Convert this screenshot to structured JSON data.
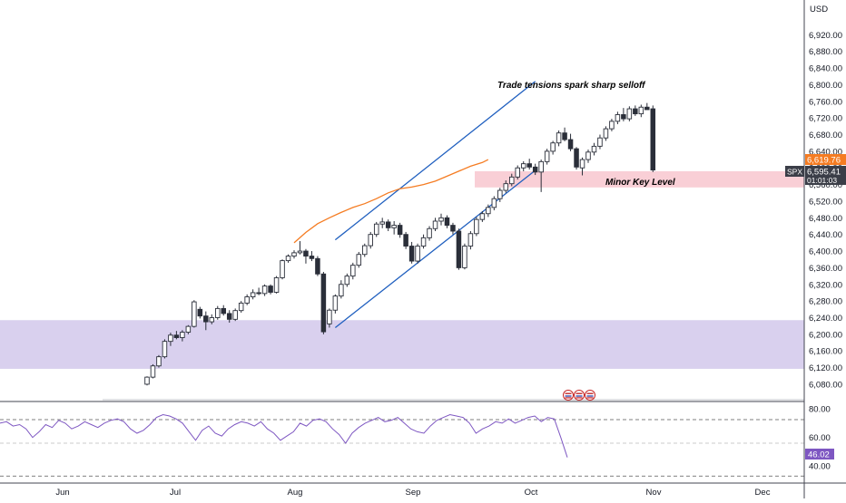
{
  "chart_data": [
    {
      "type": "candlestick",
      "symbol": "SPX",
      "currency": "USD",
      "x_ticks": [
        "Jun",
        "Jul",
        "Aug",
        "Sep",
        "Oct",
        "Nov",
        "Dec"
      ],
      "y_ticks": [
        "6,920.00",
        "6,880.00",
        "6,840.00",
        "6,800.00",
        "6,760.00",
        "6,720.00",
        "6,680.00",
        "6,640.00",
        "6,600.00",
        "6,560.00",
        "6,520.00",
        "6,480.00",
        "6,440.00",
        "6,400.00",
        "6,360.00",
        "6,320.00",
        "6,280.00",
        "6,240.00",
        "6,200.00",
        "6,160.00",
        "6,120.00",
        "6,080.00"
      ],
      "ylim": [
        6045,
        6960
      ],
      "last_price": "6,595.41",
      "countdown": "01:01:03",
      "ma_label_value": "6,619.76",
      "ma_value": 6619.76,
      "annotations": [
        "Trade tensions spark sharp selloff",
        "Minor Key Level"
      ],
      "zones": [
        {
          "name": "Minor Key Level",
          "y_from": 6553,
          "y_to": 6592,
          "color": "#f9cfd6"
        },
        {
          "name": "demand-zone",
          "y_from": 6117,
          "y_to": 6234,
          "color": "#d9d0ee"
        }
      ],
      "channel": {
        "upper": [
          [
            32,
            6427
          ],
          [
            66,
            6808
          ]
        ],
        "lower": [
          [
            32,
            6216
          ],
          [
            66,
            6594
          ]
        ]
      },
      "start_day": 0,
      "candles": [
        [
          6080,
          6099,
          6077,
          6097
        ],
        [
          6097,
          6128,
          6094,
          6124
        ],
        [
          6124,
          6150,
          6120,
          6146
        ],
        [
          6146,
          6188,
          6142,
          6183
        ],
        [
          6183,
          6204,
          6172,
          6198
        ],
        [
          6198,
          6208,
          6188,
          6192
        ],
        [
          6192,
          6210,
          6183,
          6205
        ],
        [
          6205,
          6222,
          6200,
          6219
        ],
        [
          6219,
          6282,
          6216,
          6278
        ],
        [
          6260,
          6266,
          6238,
          6244
        ],
        [
          6244,
          6255,
          6210,
          6230
        ],
        [
          6230,
          6248,
          6224,
          6240
        ],
        [
          6240,
          6268,
          6235,
          6262
        ],
        [
          6262,
          6270,
          6245,
          6250
        ],
        [
          6250,
          6258,
          6228,
          6236
        ],
        [
          6236,
          6262,
          6232,
          6257
        ],
        [
          6257,
          6280,
          6252,
          6275
        ],
        [
          6275,
          6296,
          6270,
          6290
        ],
        [
          6290,
          6308,
          6284,
          6300
        ],
        [
          6300,
          6312,
          6294,
          6298
        ],
        [
          6298,
          6320,
          6292,
          6316
        ],
        [
          6316,
          6320,
          6296,
          6301
        ],
        [
          6301,
          6340,
          6298,
          6336
        ],
        [
          6336,
          6380,
          6332,
          6377
        ],
        [
          6377,
          6392,
          6372,
          6388
        ],
        [
          6388,
          6402,
          6382,
          6396
        ],
        [
          6396,
          6424,
          6392,
          6400
        ],
        [
          6400,
          6405,
          6370,
          6388
        ],
        [
          6388,
          6400,
          6376,
          6382
        ],
        [
          6382,
          6388,
          6340,
          6345
        ],
        [
          6345,
          6350,
          6200,
          6206
        ],
        [
          6225,
          6262,
          6216,
          6258
        ],
        [
          6258,
          6296,
          6250,
          6292
        ],
        [
          6292,
          6330,
          6286,
          6320
        ],
        [
          6320,
          6346,
          6314,
          6340
        ],
        [
          6340,
          6372,
          6332,
          6366
        ],
        [
          6366,
          6398,
          6360,
          6392
        ],
        [
          6392,
          6418,
          6386,
          6413
        ],
        [
          6413,
          6446,
          6406,
          6440
        ],
        [
          6440,
          6470,
          6434,
          6465
        ],
        [
          6465,
          6480,
          6455,
          6470
        ],
        [
          6470,
          6476,
          6448,
          6456
        ],
        [
          6456,
          6472,
          6440,
          6462
        ],
        [
          6462,
          6468,
          6432,
          6440
        ],
        [
          6440,
          6446,
          6405,
          6412
        ],
        [
          6412,
          6422,
          6370,
          6376
        ],
        [
          6376,
          6418,
          6370,
          6412
        ],
        [
          6412,
          6440,
          6406,
          6432
        ],
        [
          6432,
          6460,
          6425,
          6454
        ],
        [
          6454,
          6480,
          6448,
          6472
        ],
        [
          6472,
          6490,
          6462,
          6480
        ],
        [
          6480,
          6486,
          6455,
          6462
        ],
        [
          6462,
          6468,
          6440,
          6448
        ],
        [
          6448,
          6454,
          6355,
          6360
        ],
        [
          6360,
          6418,
          6356,
          6412
        ],
        [
          6412,
          6448,
          6404,
          6442
        ],
        [
          6442,
          6482,
          6436,
          6476
        ],
        [
          6476,
          6496,
          6470,
          6490
        ],
        [
          6490,
          6512,
          6482,
          6505
        ],
        [
          6505,
          6532,
          6498,
          6526
        ],
        [
          6526,
          6552,
          6518,
          6546
        ],
        [
          6546,
          6570,
          6540,
          6562
        ],
        [
          6562,
          6586,
          6556,
          6578
        ],
        [
          6578,
          6606,
          6572,
          6600
        ],
        [
          6600,
          6616,
          6592,
          6610
        ],
        [
          6610,
          6622,
          6596,
          6602
        ],
        [
          6602,
          6610,
          6583,
          6590
        ],
        [
          6590,
          6620,
          6542,
          6615
        ],
        [
          6615,
          6646,
          6608,
          6640
        ],
        [
          6640,
          6665,
          6632,
          6660
        ],
        [
          6660,
          6690,
          6652,
          6684
        ],
        [
          6684,
          6697,
          6664,
          6668
        ],
        [
          6668,
          6682,
          6640,
          6646
        ],
        [
          6646,
          6650,
          6596,
          6602
        ],
        [
          6600,
          6625,
          6582,
          6620
        ],
        [
          6620,
          6644,
          6612,
          6638
        ],
        [
          6638,
          6660,
          6630,
          6652
        ],
        [
          6652,
          6680,
          6645,
          6672
        ],
        [
          6672,
          6700,
          6665,
          6694
        ],
        [
          6694,
          6718,
          6688,
          6712
        ],
        [
          6712,
          6735,
          6705,
          6728
        ],
        [
          6728,
          6744,
          6712,
          6718
        ],
        [
          6718,
          6748,
          6712,
          6742
        ],
        [
          6742,
          6750,
          6725,
          6730
        ],
        [
          6730,
          6752,
          6722,
          6746
        ],
        [
          6746,
          6756,
          6740,
          6740
        ],
        [
          6742,
          6750,
          6590,
          6595
        ]
      ],
      "ma_line": [
        [
          25,
          6420
        ],
        [
          27,
          6445
        ],
        [
          29,
          6466
        ],
        [
          31,
          6480
        ],
        [
          33,
          6493
        ],
        [
          35,
          6505
        ],
        [
          37,
          6514
        ],
        [
          39,
          6526
        ],
        [
          41,
          6540
        ],
        [
          43,
          6550
        ],
        [
          45,
          6554
        ],
        [
          47,
          6560
        ],
        [
          49,
          6568
        ],
        [
          51,
          6580
        ],
        [
          53,
          6592
        ],
        [
          55,
          6604
        ],
        [
          57,
          6613
        ],
        [
          58,
          6620
        ]
      ],
      "rsi": {
        "levels": [
          "80.00",
          "60.00",
          "40.00"
        ],
        "ylim": [
          30,
          82
        ],
        "last": "46.02",
        "values": [
          70,
          71,
          68,
          69,
          66,
          60,
          64,
          69,
          67,
          72,
          70,
          66,
          68,
          71,
          69,
          67,
          70,
          72,
          73,
          71,
          66,
          63,
          65,
          69,
          74,
          76,
          75,
          73,
          70,
          64,
          58,
          65,
          68,
          63,
          61,
          66,
          69,
          71,
          70,
          68,
          71,
          66,
          63,
          58,
          61,
          64,
          70,
          68,
          72,
          73,
          71,
          66,
          62,
          56,
          63,
          67,
          70,
          72,
          74,
          71,
          72,
          74,
          70,
          66,
          64,
          63,
          68,
          72,
          74,
          76,
          75,
          74,
          70,
          63,
          66,
          68,
          71,
          70,
          73,
          70,
          72,
          74,
          75,
          71,
          74,
          73,
          60,
          46.02
        ]
      },
      "event_markers": 3
    }
  ]
}
